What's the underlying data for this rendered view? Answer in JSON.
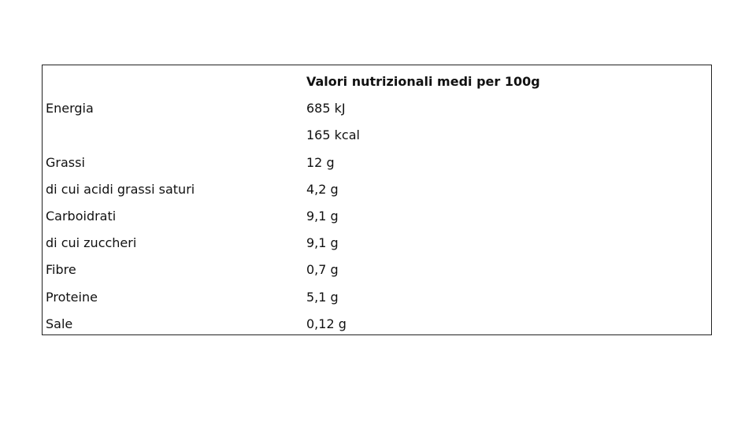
{
  "table": {
    "header": [
      "",
      "Valori nutrizionali medi per 100g"
    ],
    "rows": [
      [
        "Energia",
        "685 kJ"
      ],
      [
        "",
        "165 kcal"
      ],
      [
        "Grassi",
        "12 g"
      ],
      [
        "di cui acidi grassi saturi",
        "4,2 g"
      ],
      [
        "Carboidrati",
        "9,1 g"
      ],
      [
        "di cui zuccheri",
        "9,1 g"
      ],
      [
        "Fibre",
        "0,7 g"
      ],
      [
        "Proteine",
        "5,1 g"
      ],
      [
        "Sale",
        "0,12 g"
      ]
    ]
  }
}
